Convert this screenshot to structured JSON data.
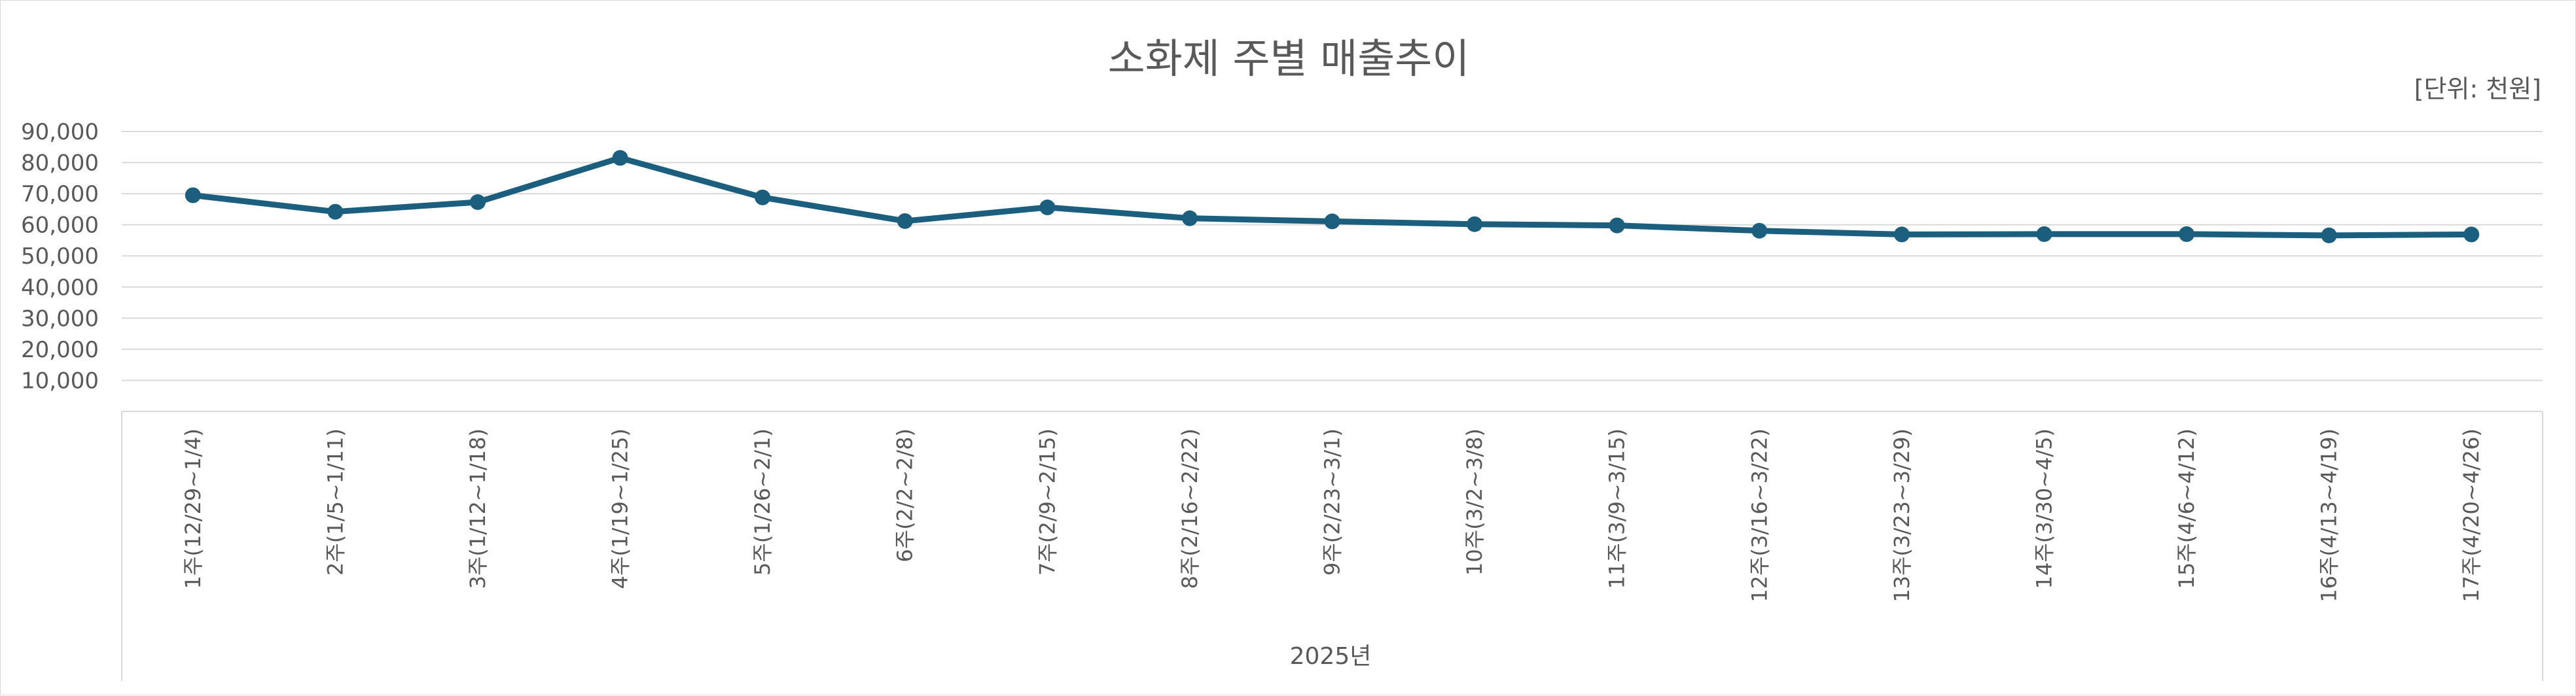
{
  "chart_data": {
    "type": "line",
    "title": "소화제 주별 매출추이",
    "unit_label": "[단위: 천원]",
    "x_group_label": "2025년",
    "categories": [
      "1주(12/29~1/4)",
      "2주(1/5~1/11)",
      "3주(1/12~1/18)",
      "4주(1/19~1/25)",
      "5주(1/26~2/1)",
      "6주(2/2~2/8)",
      "7주(2/9~2/15)",
      "8주(2/16~2/22)",
      "9주(2/23~3/1)",
      "10주(3/2~3/8)",
      "11주(3/9~3/15)",
      "12주(3/16~3/22)",
      "13주(3/23~3/29)",
      "14주(3/30~4/5)",
      "15주(4/6~4/12)",
      "16주(4/13~4/19)",
      "17주(4/20~4/26)"
    ],
    "series": [
      {
        "values": [
          69500,
          64200,
          67300,
          81500,
          68800,
          61200,
          65600,
          62100,
          61100,
          60200,
          59800,
          58100,
          56900,
          57000,
          57000,
          56600,
          56900
        ],
        "color": "#1b5e7e"
      }
    ],
    "y_ticks": [
      "10,000",
      "20,000",
      "30,000",
      "40,000",
      "50,000",
      "60,000",
      "70,000",
      "80,000",
      "90,000"
    ],
    "ylim": [
      0,
      90000
    ],
    "grid": true,
    "colors": {
      "line": "#1b5e7e",
      "grid": "#d9d9d9",
      "text": "#595959"
    }
  }
}
